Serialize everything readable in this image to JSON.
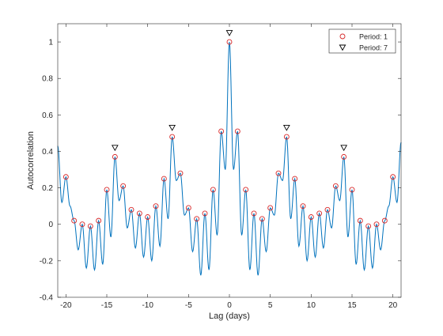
{
  "chart_data": {
    "type": "line",
    "xlabel": "Lag (days)",
    "ylabel": "Autocorrelation",
    "xlim": [
      -21,
      21
    ],
    "ylim": [
      -0.4,
      1.1
    ],
    "xticks": [
      -20,
      -15,
      -10,
      -5,
      0,
      5,
      10,
      15,
      20
    ],
    "yticks": [
      -0.4,
      -0.2,
      0,
      0.2,
      0.4,
      0.6,
      0.8,
      1
    ],
    "ytick_labels": [
      "-0.4",
      "-0.2",
      "0",
      "0.2",
      "0.4",
      "0.6",
      "0.8",
      "1"
    ],
    "grid": false,
    "legend_position": "top-right",
    "colors": {
      "line": "#0072bd",
      "period1_marker": "#d62728",
      "period7_marker": "#000000",
      "axes": "#262626"
    },
    "series": [
      {
        "name": "",
        "style": "line",
        "description_peaks": "oscillating autocorrelation with local peaks at integer lags",
        "peak_lags": [
          -20,
          -19,
          -18,
          -17,
          -16,
          -15,
          -14,
          -13,
          -12,
          -11,
          -10,
          -9,
          -8,
          -7,
          -6,
          -5,
          -4,
          -3,
          -2,
          -1,
          0,
          1,
          2,
          3,
          4,
          5,
          6,
          7,
          8,
          9,
          10,
          11,
          12,
          13,
          14,
          15,
          16,
          17,
          18,
          19,
          20
        ],
        "peak_values": [
          0.26,
          0.02,
          0.0,
          -0.01,
          0.02,
          0.19,
          0.37,
          0.21,
          0.08,
          0.06,
          0.04,
          0.1,
          0.25,
          0.48,
          0.28,
          0.09,
          0.03,
          0.06,
          0.19,
          0.51,
          1.0,
          0.51,
          0.19,
          0.06,
          0.03,
          0.09,
          0.28,
          0.48,
          0.25,
          0.1,
          0.04,
          0.06,
          0.08,
          0.21,
          0.37,
          0.19,
          0.02,
          -0.01,
          0.0,
          0.02,
          0.26
        ],
        "trough_values": [
          0.1,
          -0.14,
          -0.24,
          -0.25,
          -0.22,
          -0.07,
          0.13,
          -0.02,
          -0.13,
          -0.18,
          -0.2,
          -0.12,
          0.03,
          0.24,
          0.05,
          -0.15,
          -0.28,
          -0.25,
          -0.06,
          0.3,
          0.3,
          -0.06,
          -0.25,
          -0.28,
          -0.15,
          0.05,
          0.24,
          0.03,
          -0.12,
          -0.2,
          -0.18,
          -0.13,
          -0.02,
          0.13,
          -0.07,
          -0.22,
          -0.25,
          -0.24,
          -0.14,
          0.1
        ],
        "edge_values": {
          "at_xmin": 0.43,
          "at_xmax": 0.45
        }
      },
      {
        "name": "Period: 1",
        "style": "marker-circle",
        "x": [
          -20,
          -19,
          -18,
          -17,
          -16,
          -15,
          -14,
          -13,
          -12,
          -11,
          -10,
          -9,
          -8,
          -7,
          -6,
          -5,
          -4,
          -3,
          -2,
          -1,
          0,
          1,
          2,
          3,
          4,
          5,
          6,
          7,
          8,
          9,
          10,
          11,
          12,
          13,
          14,
          15,
          16,
          17,
          18,
          19,
          20
        ],
        "y": [
          0.26,
          0.02,
          0.0,
          -0.01,
          0.02,
          0.19,
          0.37,
          0.21,
          0.08,
          0.06,
          0.04,
          0.1,
          0.25,
          0.48,
          0.28,
          0.09,
          0.03,
          0.06,
          0.19,
          0.51,
          1.0,
          0.51,
          0.19,
          0.06,
          0.03,
          0.09,
          0.28,
          0.48,
          0.25,
          0.1,
          0.04,
          0.06,
          0.08,
          0.21,
          0.37,
          0.19,
          0.02,
          -0.01,
          0.0,
          0.02,
          0.26
        ]
      },
      {
        "name": "Period: 7",
        "style": "marker-triangle-down",
        "x": [
          -14,
          -7,
          0,
          7,
          14
        ],
        "y": [
          0.42,
          0.53,
          1.05,
          0.53,
          0.42
        ]
      }
    ]
  }
}
